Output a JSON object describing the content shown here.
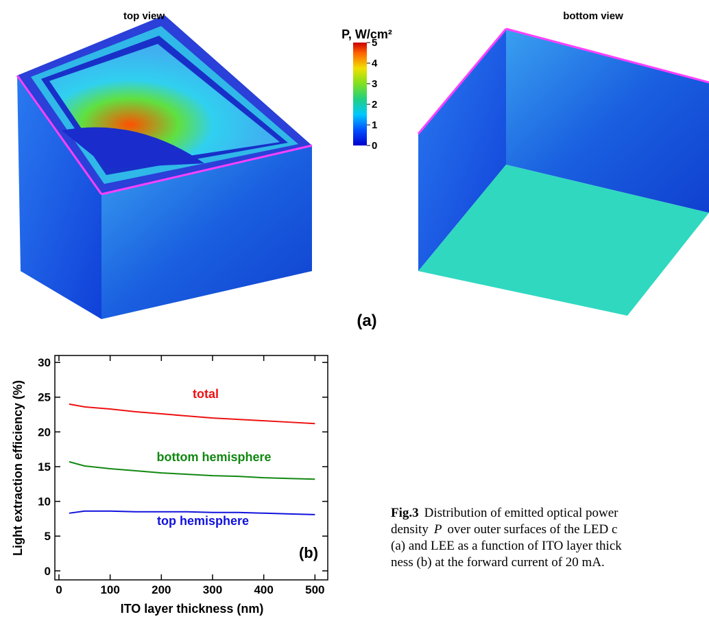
{
  "panel_a": {
    "top_view_label": "top view",
    "bottom_view_label": "bottom view",
    "colorbar_title": "P, W/cm²",
    "colorbar_ticks": [
      0,
      1,
      2,
      3,
      4,
      5
    ],
    "colorbar_range": [
      0,
      5
    ],
    "label": "(a)"
  },
  "chart_data": {
    "type": "line",
    "xlabel": "ITO layer thickness (nm)",
    "ylabel": "Light extraction efficiency (%)",
    "x": [
      20,
      50,
      100,
      150,
      200,
      250,
      300,
      350,
      400,
      450,
      500
    ],
    "series": [
      {
        "name": "total",
        "color": "#ee1111",
        "values": [
          24.0,
          23.6,
          23.3,
          22.9,
          22.6,
          22.3,
          22.0,
          21.8,
          21.6,
          21.4,
          21.2
        ]
      },
      {
        "name": "bottom hemisphere",
        "color": "#118811",
        "values": [
          15.7,
          15.1,
          14.7,
          14.4,
          14.1,
          13.9,
          13.7,
          13.6,
          13.4,
          13.3,
          13.2
        ]
      },
      {
        "name": "top hemisphere",
        "color": "#1111dd",
        "values": [
          8.3,
          8.6,
          8.6,
          8.5,
          8.5,
          8.5,
          8.4,
          8.4,
          8.3,
          8.2,
          8.1
        ]
      }
    ],
    "xlim": [
      -8,
      525
    ],
    "ylim": [
      -1.3,
      31
    ],
    "xticks": [
      0,
      100,
      200,
      300,
      400,
      500
    ],
    "yticks": [
      0,
      5,
      10,
      15,
      20,
      25,
      30
    ],
    "panel_label": "(b)"
  },
  "caption": {
    "figure": "Fig.3",
    "line1": "Distribution of emitted optical power",
    "line2a": "density",
    "line2_symbol": "P",
    "line2b": "over outer surfaces of the LED c",
    "line3": "(a) and LEE as a function of ITO layer thick",
    "line4": "ness (b) at the forward current of 20 mA."
  }
}
